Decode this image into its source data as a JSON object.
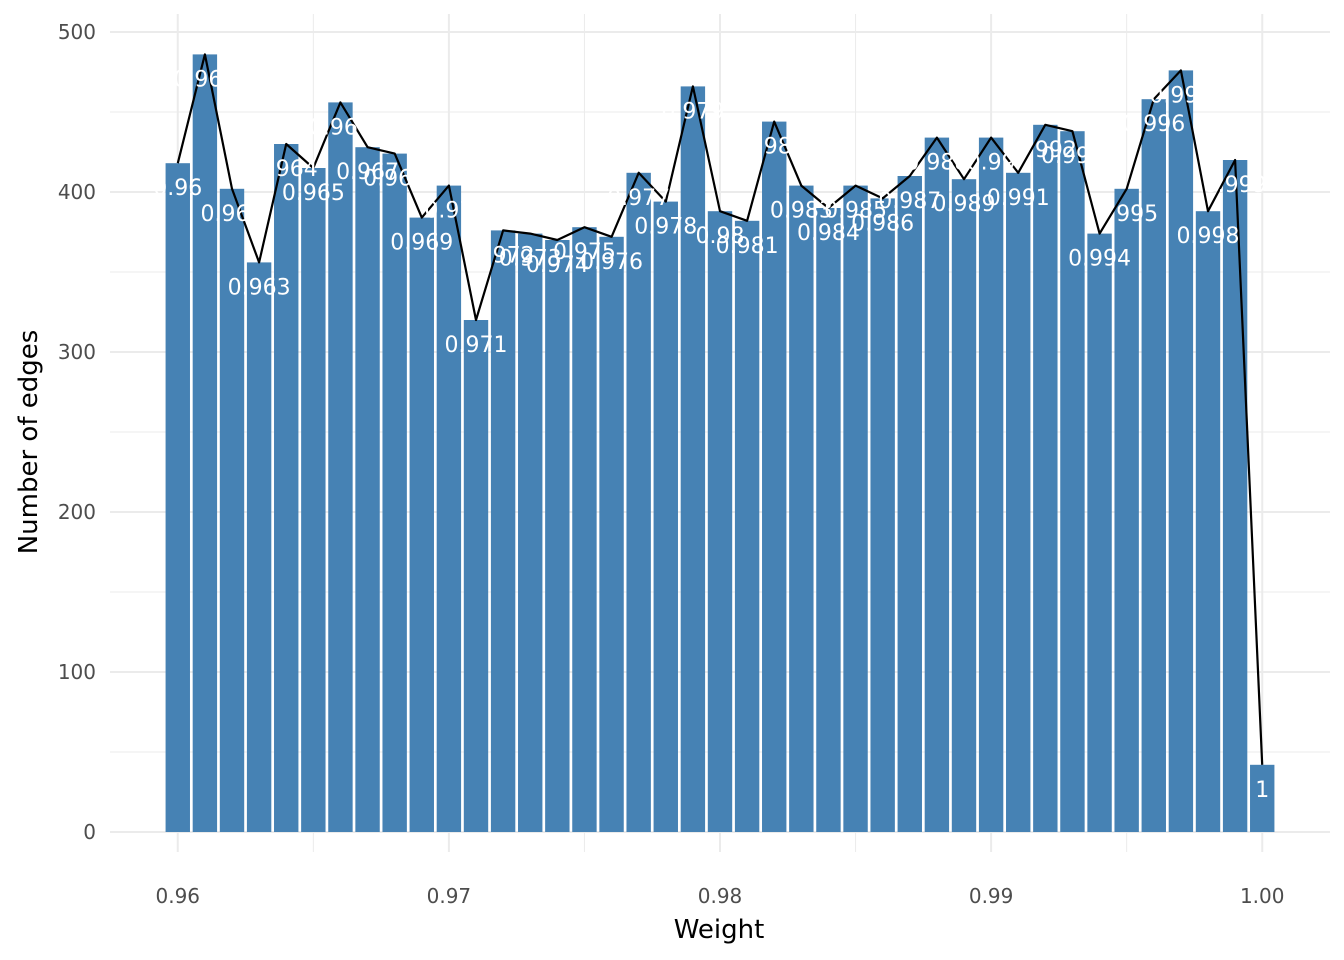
{
  "chart_data": {
    "type": "bar",
    "xlabel": "Weight",
    "ylabel": "Number of edges",
    "xlim": [
      0.9575,
      1.0025
    ],
    "ylim": [
      0,
      500
    ],
    "x_ticks": [
      {
        "value": 0.96,
        "label": "0.96"
      },
      {
        "value": 0.97,
        "label": "0.97"
      },
      {
        "value": 0.98,
        "label": "0.98"
      },
      {
        "value": 0.99,
        "label": "0.99"
      },
      {
        "value": 1.0,
        "label": "1.00"
      }
    ],
    "y_ticks": [
      {
        "value": 0,
        "label": "0"
      },
      {
        "value": 100,
        "label": "100"
      },
      {
        "value": 200,
        "label": "200"
      },
      {
        "value": 300,
        "label": "300"
      },
      {
        "value": 400,
        "label": "400"
      },
      {
        "value": 500,
        "label": "500"
      }
    ],
    "grid": true,
    "bar_color": "#4682b4",
    "line_color": "#000000",
    "label_color": "#ffffff",
    "series": [
      {
        "x": [
          0.96,
          0.961,
          0.962,
          0.963,
          0.964,
          0.965,
          0.966,
          0.967,
          0.968,
          0.969,
          0.97,
          0.971,
          0.972,
          0.973,
          0.974,
          0.975,
          0.976,
          0.977,
          0.978,
          0.979,
          0.98,
          0.981,
          0.982,
          0.983,
          0.984,
          0.985,
          0.986,
          0.987,
          0.988,
          0.989,
          0.99,
          0.991,
          0.992,
          0.993,
          0.994,
          0.995,
          0.996,
          0.997,
          0.998,
          0.999,
          1.0
        ],
        "values": [
          418,
          486,
          402,
          356,
          430,
          415,
          456,
          428,
          424,
          384,
          404,
          320,
          376,
          374,
          370,
          378,
          372,
          412,
          394,
          466,
          388,
          382,
          444,
          404,
          390,
          404,
          396,
          410,
          434,
          408,
          434,
          412,
          442,
          438,
          374,
          402,
          458,
          476,
          388,
          420,
          42
        ],
        "labels": [
          "0.96",
          "0.961",
          "0.962",
          "0.963",
          "0.964",
          "0.965",
          "0.966",
          "0.967",
          "0.968",
          "0.969",
          "0.97",
          "0.971",
          "0.972",
          "0.973",
          "0.974",
          "0.975",
          "0.976",
          "0.977",
          "0.978",
          "0.979",
          "0.98",
          "0.981",
          "0.982",
          "0.983",
          "0.984",
          "0.985",
          "0.986",
          "0.987",
          "0.988",
          "0.989",
          "0.99",
          "0.991",
          "0.992",
          "0.993",
          "0.994",
          "0.995",
          "0.996",
          "0.997",
          "0.998",
          "0.999",
          "1"
        ]
      }
    ]
  }
}
